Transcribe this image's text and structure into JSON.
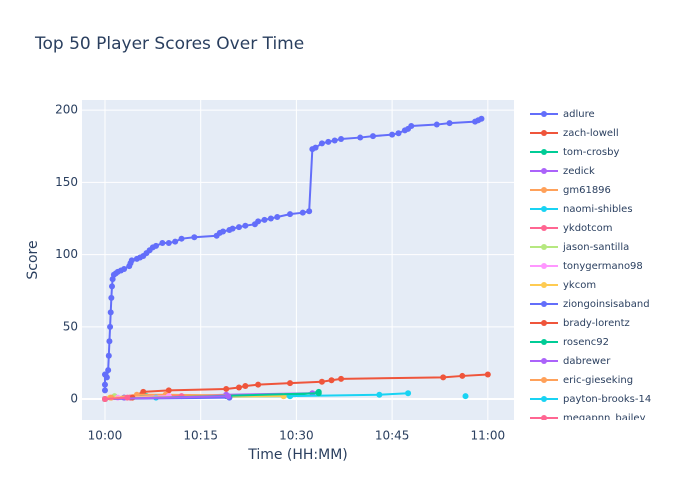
{
  "chart_data": {
    "type": "line",
    "title": "Top 50 Player Scores Over Time",
    "x_label": "Time (HH:MM)",
    "y_label": "Score",
    "xlim": [
      -3.6,
      64.1
    ],
    "ylim": [
      -14.5,
      207
    ],
    "xticks": [
      {
        "value": 0,
        "label": "10:00"
      },
      {
        "value": 15,
        "label": "10:15"
      },
      {
        "value": 30,
        "label": "10:30"
      },
      {
        "value": 45,
        "label": "10:45"
      },
      {
        "value": 60,
        "label": "11:00"
      }
    ],
    "yticks": [
      0,
      50,
      100,
      150,
      200
    ],
    "grid": true,
    "legend": "right",
    "series": [
      {
        "name": "adlure",
        "color": "#636efa",
        "x": [
          0,
          0,
          0,
          0.3,
          0.5,
          0.6,
          0.7,
          0.8,
          0.9,
          1.0,
          1.1,
          1.2,
          1.4,
          1.7,
          2,
          2.5,
          3,
          3.8,
          4,
          4.2,
          5,
          5.5,
          6,
          6.5,
          7,
          7.5,
          8,
          9,
          10,
          11,
          12,
          14,
          17.5,
          18,
          18.5,
          19.5,
          20,
          21,
          22,
          23.5,
          24,
          25,
          26,
          27,
          29,
          31,
          32,
          32.5,
          33,
          34,
          35,
          36,
          37,
          40,
          42,
          45,
          46,
          47,
          47.5,
          48,
          52,
          54,
          58,
          58.5,
          59
        ],
        "values": [
          6,
          10,
          17,
          15,
          20,
          30,
          40,
          50,
          60,
          70,
          78,
          83,
          86,
          87,
          88,
          89,
          90,
          92,
          94,
          96,
          97,
          98,
          99,
          101,
          103,
          105,
          106,
          108,
          108,
          109,
          111,
          112,
          113,
          115,
          116,
          117,
          118,
          119,
          120,
          121,
          123,
          124,
          125,
          126,
          128,
          129,
          130,
          173,
          174,
          177,
          178,
          179,
          180,
          181,
          182,
          183,
          184,
          186,
          187,
          189,
          190,
          191,
          192,
          193,
          194
        ]
      },
      {
        "name": "zach-lowell",
        "color": "#EF553B",
        "x": [
          0,
          4,
          6,
          10,
          19,
          21,
          22,
          24,
          29,
          34,
          35.5,
          37,
          53,
          56,
          60
        ],
        "values": [
          0,
          1,
          5,
          6,
          7,
          8,
          9,
          10,
          11,
          12,
          13,
          14,
          15,
          16,
          17
        ]
      },
      {
        "name": "tom-crosby",
        "color": "#00cc96",
        "x": [
          0,
          3,
          6.5,
          19,
          29,
          33.5
        ],
        "values": [
          0,
          1,
          2,
          2,
          2,
          5
        ]
      },
      {
        "name": "zedick",
        "color": "#ab63fa",
        "x": [
          0,
          3,
          19,
          32.5
        ],
        "values": [
          0,
          1,
          3,
          4
        ]
      },
      {
        "name": "gm61896",
        "color": "#FFA15A",
        "x": [
          0,
          5,
          9.5,
          28
        ],
        "values": [
          0,
          3,
          3,
          2
        ]
      },
      {
        "name": "naomi-shibles",
        "color": "#19d3f3",
        "x": [
          0,
          8,
          29,
          43,
          47.5
        ],
        "values": [
          0,
          1,
          2,
          3,
          4
        ]
      },
      {
        "name": "ykdotcom",
        "color": "#FF6692",
        "x": [
          0,
          4,
          12
        ],
        "values": [
          0,
          1,
          2
        ]
      },
      {
        "name": "jason-santilla",
        "color": "#B6E880",
        "x": [
          0,
          1.5
        ],
        "values": [
          0,
          2
        ]
      },
      {
        "name": "tonygermano98",
        "color": "#FF97FF",
        "x": [
          0,
          2,
          10
        ],
        "values": [
          0,
          1,
          2
        ]
      },
      {
        "name": "ykcom",
        "color": "#FECB52",
        "x": [
          0,
          0.8,
          28
        ],
        "values": [
          0,
          1,
          2
        ]
      },
      {
        "name": "ziongoinsisaband",
        "color": "#636efa",
        "x": [
          0,
          19.5
        ],
        "values": [
          0,
          1
        ]
      },
      {
        "name": "brady-lorentz",
        "color": "#EF553B",
        "x": [
          0,
          4.3
        ],
        "values": [
          0,
          1
        ]
      },
      {
        "name": "rosenc92",
        "color": "#00cc96",
        "x": [
          0,
          33.5
        ],
        "values": [
          0,
          4
        ]
      },
      {
        "name": "dabrewer",
        "color": "#ab63fa",
        "x": [
          0,
          19.3
        ],
        "values": [
          0,
          2
        ]
      },
      {
        "name": "eric-gieseking",
        "color": "#FFA15A",
        "x": [
          0,
          1
        ],
        "values": [
          0,
          1
        ]
      },
      {
        "name": "payton-brooks-14",
        "color": "#19d3f3",
        "x": [
          56.5
        ],
        "values": [
          2
        ]
      },
      {
        "name": "megapnn_bailey",
        "color": "#FF6692",
        "x": [
          0,
          3.5
        ],
        "values": [
          0,
          1
        ]
      }
    ]
  }
}
